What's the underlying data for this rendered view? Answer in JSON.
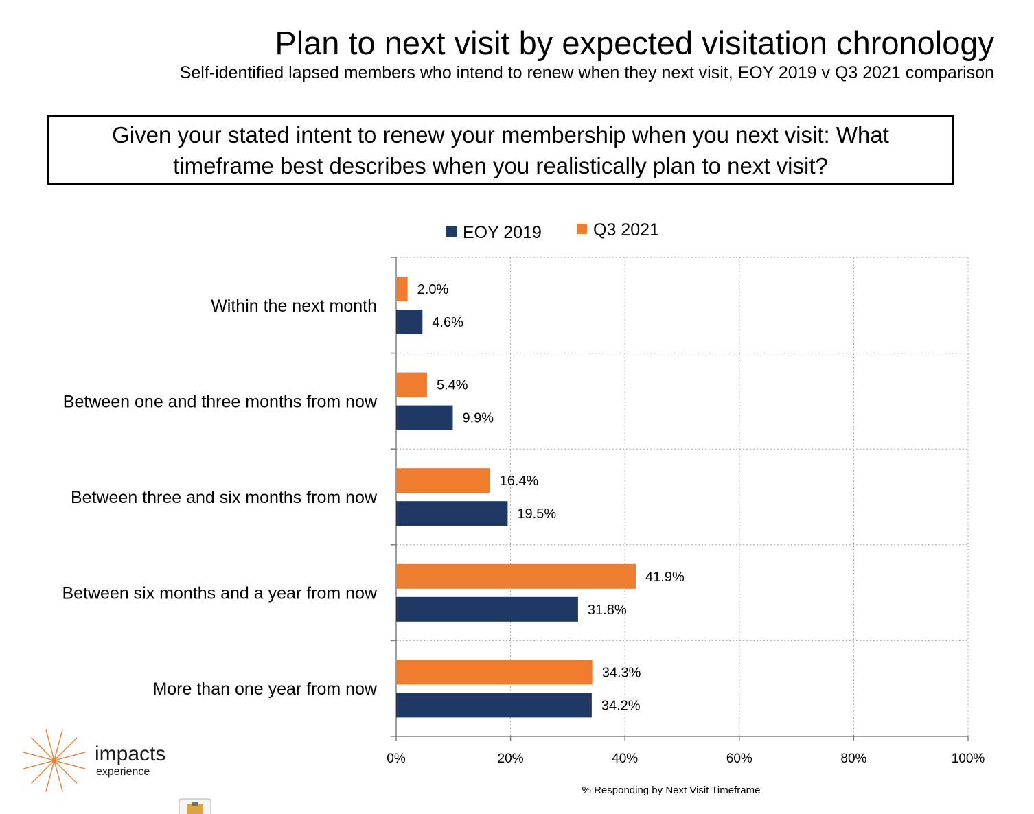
{
  "header": {
    "title": "Plan to next visit by expected visitation chronology",
    "subtitle": "Self-identified lapsed members who intend to renew when they next visit, EOY 2019 v Q3 2021 comparison",
    "question": "Given your stated intent to renew your membership when you next visit: What timeframe best describes when you realistically plan to next visit?"
  },
  "logo": {
    "name": "impacts",
    "tagline": "experience",
    "icon": "starburst-icon",
    "color": "#ef7d30"
  },
  "chart_data": {
    "type": "bar",
    "orientation": "horizontal",
    "categories": [
      "Within the next month",
      "Between one and three months from now",
      "Between three and six months from now",
      "Between six months and a year from now",
      "More than one year from now"
    ],
    "series": [
      {
        "name": "EOY 2019",
        "color": "#203864",
        "values": [
          4.6,
          9.9,
          19.5,
          31.8,
          34.2
        ]
      },
      {
        "name": "Q3 2021",
        "color": "#ef7d30",
        "values": [
          2.0,
          5.4,
          16.4,
          41.9,
          34.3
        ]
      }
    ],
    "value_labels": {
      "EOY 2019": [
        "4.6%",
        "9.9%",
        "19.5%",
        "31.8%",
        "34.2%"
      ],
      "Q3 2021": [
        "2.0%",
        "5.4%",
        "16.4%",
        "41.9%",
        "34.3%"
      ]
    },
    "xlim": [
      0,
      100
    ],
    "xticks": [
      0,
      20,
      40,
      60,
      80,
      100
    ],
    "xtick_labels": [
      "0%",
      "20%",
      "40%",
      "60%",
      "80%",
      "100%"
    ],
    "xlabel": "% Responding by Next Visit Timeframe",
    "ylabel": "",
    "grid": true,
    "legend_position": "top"
  }
}
